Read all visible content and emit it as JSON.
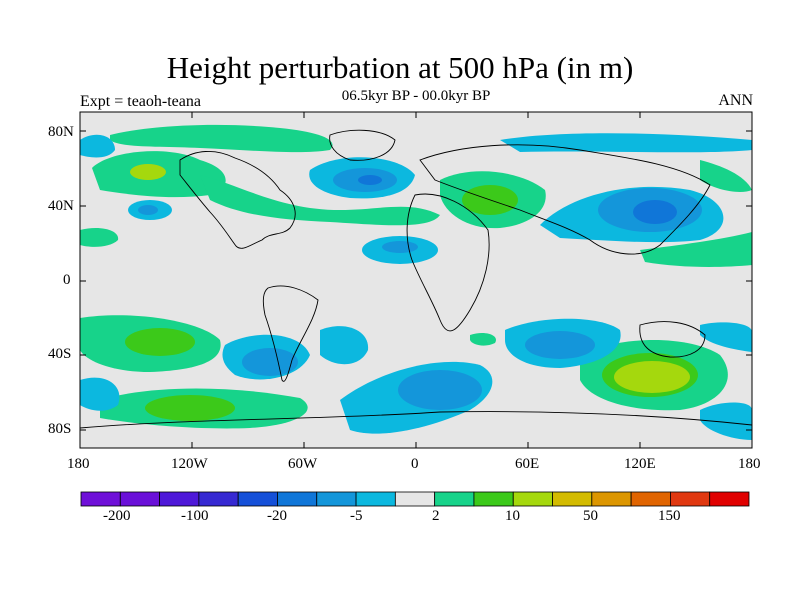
{
  "title": "Height perturbation at 500 hPa (in m)",
  "subtitle": "06.5kyr BP - 00.0kyr BP",
  "left_label": "Expt = teaoh-teana",
  "right_label": "ANN",
  "lat_ticks": [
    "80N",
    "40N",
    "0",
    "40S",
    "80S"
  ],
  "lon_ticks": [
    "180",
    "120W",
    "60W",
    "0",
    "60E",
    "120E",
    "180"
  ],
  "colorbar": {
    "colors": [
      "#6f10d8",
      "#6a10d8",
      "#4e18d8",
      "#3629d2",
      "#1550d8",
      "#1076d8",
      "#1496da",
      "#0cb8df",
      "#e6e6e6",
      "#17d38a",
      "#3cc91a",
      "#a5d80d",
      "#d3bb00",
      "#dc9600",
      "#e06400",
      "#e03810",
      "#e00000"
    ],
    "labels": [
      "-200",
      "-100",
      "-20",
      "-5",
      "2",
      "10",
      "50",
      "150"
    ]
  },
  "colors": {
    "background": "#e6e6e6",
    "coast": "#000000"
  }
}
